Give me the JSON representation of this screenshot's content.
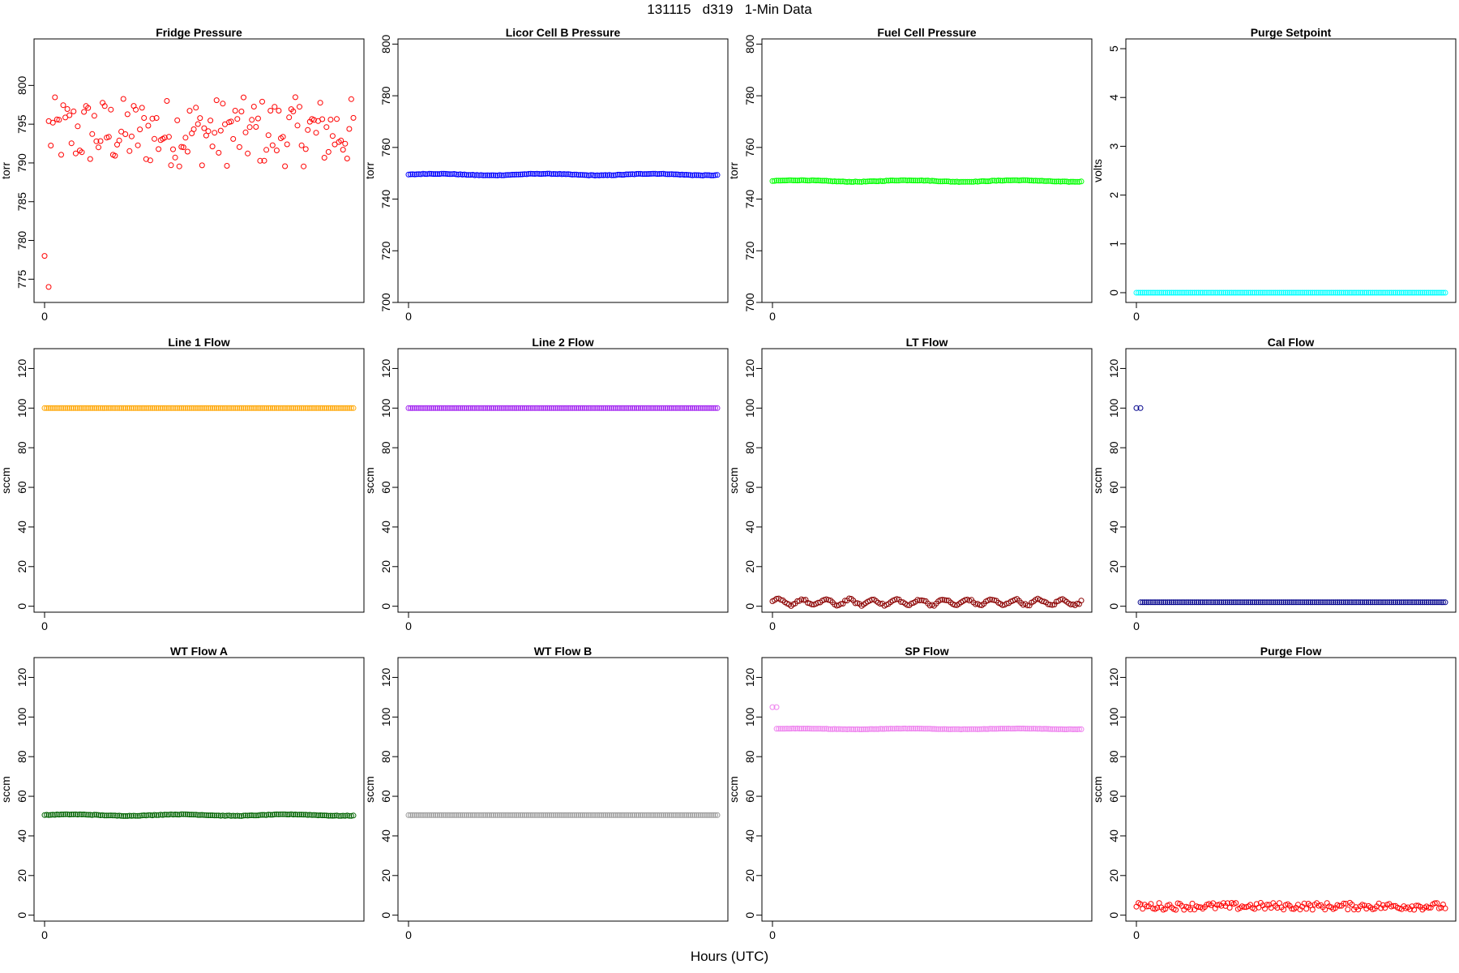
{
  "title": "131115   d319   1-Min Data",
  "xlabel": "Hours (UTC)",
  "chart_data": [
    {
      "type": "scatter",
      "title": "Fridge Pressure",
      "ylabel": "torr",
      "ylim": [
        772,
        806
      ],
      "yticks": [
        775,
        780,
        785,
        790,
        795,
        800
      ],
      "xticks": [
        0
      ],
      "color": "#ff0000",
      "pattern": "noise",
      "base": 794,
      "amp": 4.5,
      "outliers": [
        {
          "x": 0,
          "y": 778
        },
        {
          "x": 1,
          "y": 774
        }
      ]
    },
    {
      "type": "scatter",
      "title": "Licor Cell B Pressure",
      "ylabel": "torr",
      "ylim": [
        700,
        802
      ],
      "yticks": [
        700,
        720,
        740,
        760,
        780,
        800
      ],
      "xticks": [
        0
      ],
      "color": "#0000ff",
      "pattern": "flat",
      "base": 749.5,
      "amp": 0.5
    },
    {
      "type": "scatter",
      "title": "Fuel Cell Pressure",
      "ylabel": "torr",
      "ylim": [
        700,
        802
      ],
      "yticks": [
        700,
        720,
        740,
        760,
        780,
        800
      ],
      "xticks": [
        0
      ],
      "color": "#00ff00",
      "pattern": "flat",
      "base": 747,
      "amp": 0.5
    },
    {
      "type": "scatter",
      "title": "Purge Setpoint",
      "ylabel": "volts",
      "ylim": [
        -0.2,
        5.2
      ],
      "yticks": [
        0,
        1,
        2,
        3,
        4,
        5
      ],
      "xticks": [
        0
      ],
      "color": "#00ffff",
      "pattern": "flat",
      "base": 0,
      "amp": 0
    },
    {
      "type": "scatter",
      "title": "Line 1 Flow",
      "ylabel": "sccm",
      "ylim": [
        -3,
        130
      ],
      "yticks": [
        0,
        20,
        40,
        60,
        80,
        100,
        120
      ],
      "xticks": [
        0
      ],
      "color": "#ffa500",
      "pattern": "flat",
      "base": 100,
      "amp": 0
    },
    {
      "type": "scatter",
      "title": "Line 2 Flow",
      "ylabel": "sccm",
      "ylim": [
        -3,
        130
      ],
      "yticks": [
        0,
        20,
        40,
        60,
        80,
        100,
        120
      ],
      "xticks": [
        0
      ],
      "color": "#a020f0",
      "pattern": "flat",
      "base": 100,
      "amp": 0
    },
    {
      "type": "scatter",
      "title": "LT Flow",
      "ylabel": "sccm",
      "ylim": [
        -3,
        130
      ],
      "yticks": [
        0,
        20,
        40,
        60,
        80,
        100,
        120
      ],
      "xticks": [
        0
      ],
      "color": "#8b0000",
      "pattern": "wave",
      "base": 2,
      "amp": 1.8
    },
    {
      "type": "scatter",
      "title": "Cal Flow",
      "ylabel": "sccm",
      "ylim": [
        -3,
        130
      ],
      "yticks": [
        0,
        20,
        40,
        60,
        80,
        100,
        120
      ],
      "xticks": [
        0
      ],
      "color": "#00008b",
      "pattern": "flat",
      "base": 2,
      "amp": 0,
      "outliers": [
        {
          "x": 0,
          "y": 100
        },
        {
          "x": 1,
          "y": 100
        }
      ]
    },
    {
      "type": "scatter",
      "title": "WT Flow A",
      "ylabel": "sccm",
      "ylim": [
        -3,
        130
      ],
      "yticks": [
        0,
        20,
        40,
        60,
        80,
        100,
        120
      ],
      "xticks": [
        0
      ],
      "color": "#006400",
      "pattern": "flat",
      "base": 50.5,
      "amp": 0.6
    },
    {
      "type": "scatter",
      "title": "WT Flow B",
      "ylabel": "sccm",
      "ylim": [
        -3,
        130
      ],
      "yticks": [
        0,
        20,
        40,
        60,
        80,
        100,
        120
      ],
      "xticks": [
        0
      ],
      "color": "#999999",
      "pattern": "flat",
      "base": 50.5,
      "amp": 0
    },
    {
      "type": "scatter",
      "title": "SP Flow",
      "ylabel": "sccm",
      "ylim": [
        -3,
        130
      ],
      "yticks": [
        0,
        20,
        40,
        60,
        80,
        100,
        120
      ],
      "xticks": [
        0
      ],
      "color": "#ee82ee",
      "pattern": "flat",
      "base": 94,
      "amp": 0.3,
      "outliers": [
        {
          "x": 0,
          "y": 105
        },
        {
          "x": 1,
          "y": 105
        }
      ]
    },
    {
      "type": "scatter",
      "title": "Purge Flow",
      "ylabel": "sccm",
      "ylim": [
        -3,
        130
      ],
      "yticks": [
        0,
        20,
        40,
        60,
        80,
        100,
        120
      ],
      "xticks": [
        0
      ],
      "color": "#ff0000",
      "pattern": "noise",
      "base": 4.5,
      "amp": 1.8
    }
  ]
}
